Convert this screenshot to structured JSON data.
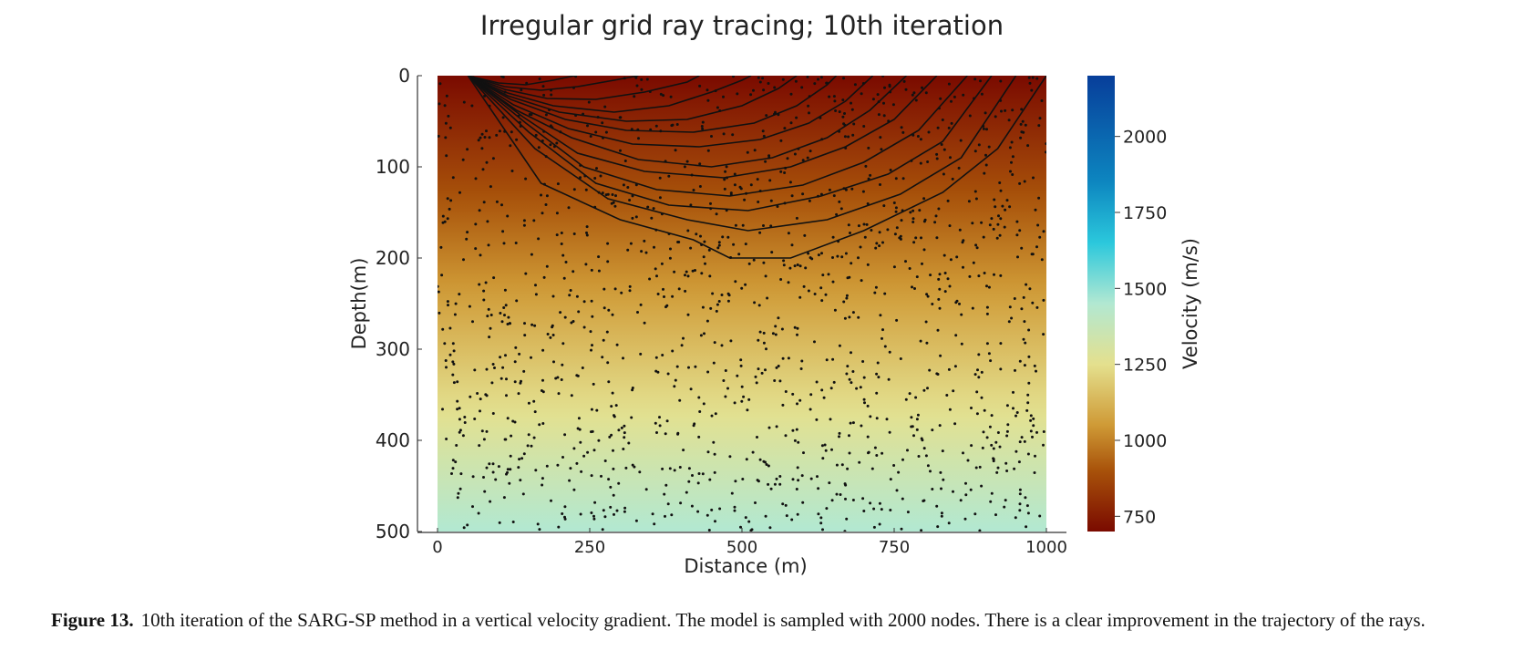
{
  "chart_data": {
    "type": "heatmap",
    "title": "Irregular grid ray tracing; 10th iteration",
    "xlabel": "Distance (m)",
    "ylabel": "Depth(m)",
    "xlim": [
      0,
      1000
    ],
    "ylim": [
      0,
      500
    ],
    "y_inverted": true,
    "x_ticks": [
      0,
      250,
      500,
      750,
      1000
    ],
    "y_ticks": [
      0,
      100,
      200,
      300,
      400,
      500
    ],
    "colorbar": {
      "label": "Velocity (m/s)",
      "ticks": [
        750,
        1000,
        1250,
        1500,
        1750,
        2000
      ],
      "range": [
        700,
        2200
      ],
      "stops": [
        {
          "value": 700,
          "color": "#7a0a00"
        },
        {
          "value": 900,
          "color": "#a8520a"
        },
        {
          "value": 1050,
          "color": "#cf9a36"
        },
        {
          "value": 1250,
          "color": "#e4e08e"
        },
        {
          "value": 1450,
          "color": "#b2e8d2"
        },
        {
          "value": 1650,
          "color": "#2bc8dc"
        },
        {
          "value": 1850,
          "color": "#0d86c0"
        },
        {
          "value": 2200,
          "color": "#073e9a"
        }
      ]
    },
    "field_velocity_range": [
      700,
      1450
    ],
    "grid": false,
    "nodes_count": 2000,
    "source": {
      "x": 50,
      "y": 0
    },
    "rays": [
      {
        "points": [
          [
            50,
            0
          ],
          [
            100,
            8
          ],
          [
            145,
            10
          ],
          [
            190,
            5
          ],
          [
            225,
            0
          ]
        ]
      },
      {
        "points": [
          [
            50,
            0
          ],
          [
            110,
            12
          ],
          [
            170,
            16
          ],
          [
            230,
            12
          ],
          [
            290,
            5
          ],
          [
            330,
            0
          ]
        ]
      },
      {
        "points": [
          [
            50,
            0
          ],
          [
            110,
            15
          ],
          [
            180,
            25
          ],
          [
            260,
            26
          ],
          [
            340,
            18
          ],
          [
            410,
            7
          ],
          [
            430,
            0
          ]
        ]
      },
      {
        "points": [
          [
            50,
            0
          ],
          [
            110,
            18
          ],
          [
            190,
            33
          ],
          [
            290,
            40
          ],
          [
            380,
            33
          ],
          [
            450,
            18
          ],
          [
            500,
            5
          ],
          [
            515,
            0
          ]
        ]
      },
      {
        "points": [
          [
            50,
            0
          ],
          [
            115,
            22
          ],
          [
            200,
            40
          ],
          [
            310,
            50
          ],
          [
            410,
            48
          ],
          [
            500,
            33
          ],
          [
            560,
            14
          ],
          [
            590,
            0
          ]
        ]
      },
      {
        "points": [
          [
            50,
            0
          ],
          [
            120,
            26
          ],
          [
            210,
            48
          ],
          [
            310,
            60
          ],
          [
            420,
            62
          ],
          [
            520,
            52
          ],
          [
            590,
            33
          ],
          [
            640,
            10
          ],
          [
            655,
            0
          ]
        ]
      },
      {
        "points": [
          [
            50,
            0
          ],
          [
            125,
            32
          ],
          [
            215,
            58
          ],
          [
            320,
            75
          ],
          [
            430,
            78
          ],
          [
            530,
            70
          ],
          [
            610,
            52
          ],
          [
            670,
            28
          ],
          [
            715,
            0
          ]
        ]
      },
      {
        "points": [
          [
            50,
            0
          ],
          [
            130,
            38
          ],
          [
            220,
            68
          ],
          [
            330,
            92
          ],
          [
            450,
            100
          ],
          [
            550,
            90
          ],
          [
            640,
            68
          ],
          [
            710,
            38
          ],
          [
            770,
            0
          ]
        ]
      },
      {
        "points": [
          [
            50,
            0
          ],
          [
            140,
            45
          ],
          [
            230,
            85
          ],
          [
            340,
            105
          ],
          [
            470,
            112
          ],
          [
            580,
            100
          ],
          [
            670,
            78
          ],
          [
            750,
            48
          ],
          [
            820,
            0
          ]
        ]
      },
      {
        "points": [
          [
            50,
            0
          ],
          [
            145,
            52
          ],
          [
            240,
            100
          ],
          [
            360,
            125
          ],
          [
            480,
            132
          ],
          [
            600,
            120
          ],
          [
            700,
            95
          ],
          [
            790,
            60
          ],
          [
            870,
            0
          ]
        ]
      },
      {
        "points": [
          [
            50,
            0
          ],
          [
            150,
            62
          ],
          [
            260,
            118
          ],
          [
            380,
            142
          ],
          [
            510,
            148
          ],
          [
            630,
            132
          ],
          [
            740,
            108
          ],
          [
            830,
            72
          ],
          [
            910,
            0
          ]
        ]
      },
      {
        "points": [
          [
            50,
            0
          ],
          [
            160,
            80
          ],
          [
            280,
            135
          ],
          [
            410,
            158
          ],
          [
            510,
            170
          ],
          [
            640,
            158
          ],
          [
            760,
            130
          ],
          [
            860,
            90
          ],
          [
            950,
            0
          ]
        ]
      },
      {
        "points": [
          [
            50,
            0
          ],
          [
            170,
            118
          ],
          [
            300,
            158
          ],
          [
            420,
            180
          ],
          [
            480,
            200
          ],
          [
            580,
            200
          ],
          [
            700,
            170
          ],
          [
            830,
            128
          ],
          [
            920,
            80
          ],
          [
            1000,
            0
          ]
        ]
      }
    ]
  },
  "caption": {
    "label": "Figure 13.",
    "text": "10th iteration of the SARG-SP method in a vertical velocity gradient. The model is sampled with 2000 nodes. There is a clear improvement in the trajectory of the rays."
  }
}
